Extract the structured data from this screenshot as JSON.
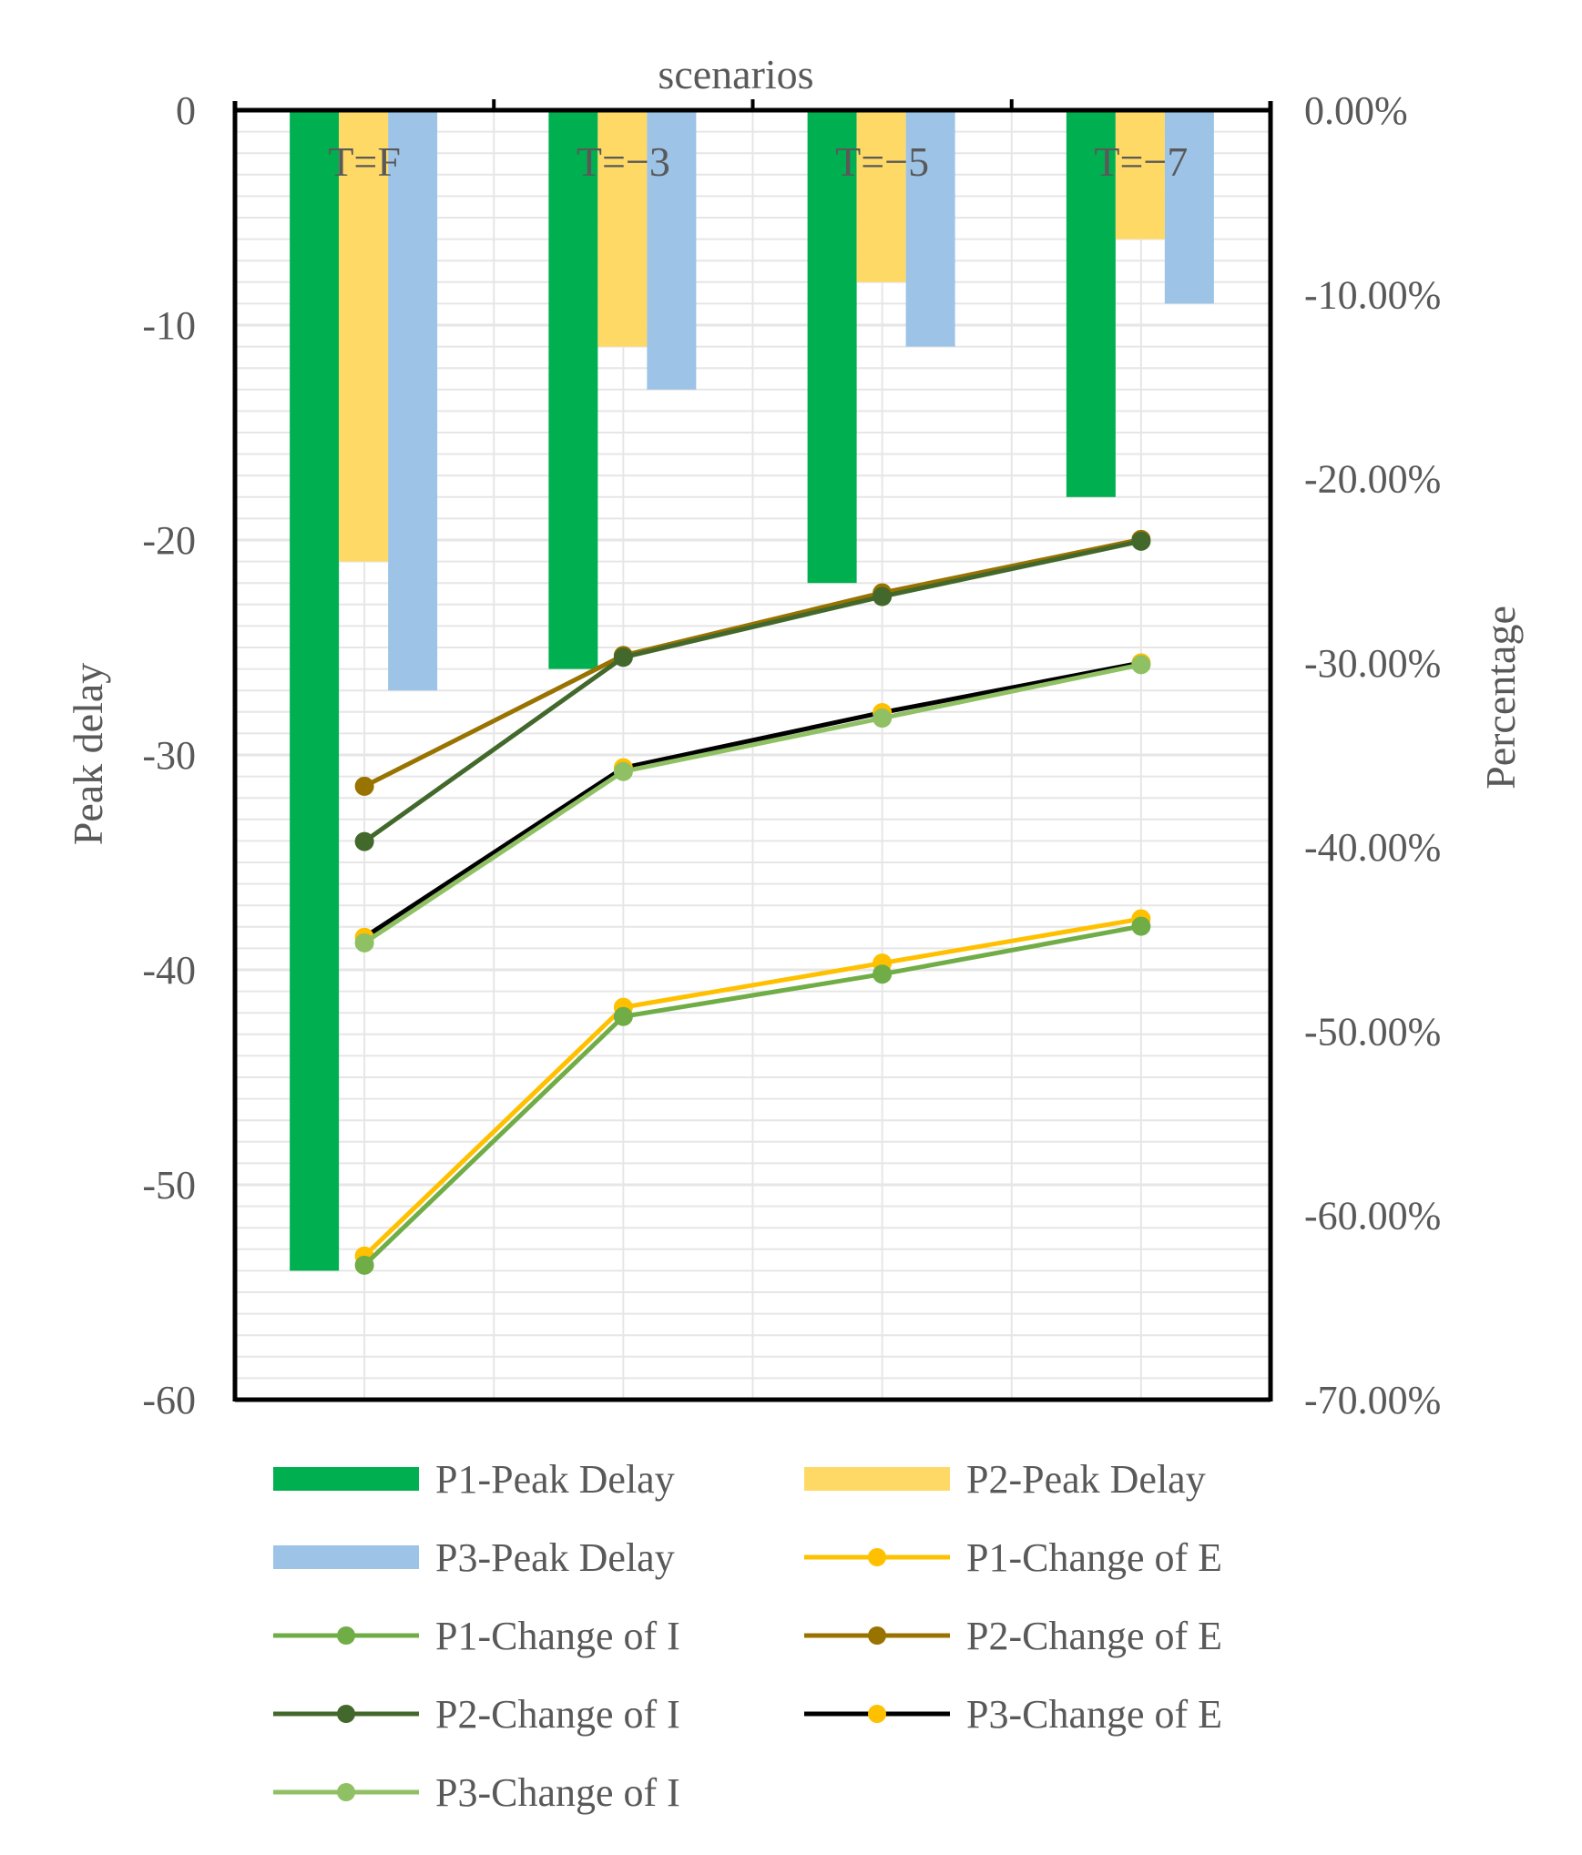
{
  "chart_data": {
    "type": "bar+line",
    "title": "",
    "xlabel": "scenarios",
    "ylabel": "Peak delay",
    "y2label": "Percentage",
    "categories": [
      "T=F",
      "T=−3",
      "T=−5",
      "T=−7"
    ],
    "ylim": [
      -60,
      0
    ],
    "y2lim": [
      -0.7,
      0
    ],
    "yticks": [
      "0",
      "-10",
      "-20",
      "-30",
      "-40",
      "-50",
      "-60"
    ],
    "y2ticks": [
      "0.00%",
      "-10.00%",
      "-20.00%",
      "-30.00%",
      "-40.00%",
      "-50.00%",
      "-60.00%",
      "-70.00%"
    ],
    "bar_series": [
      {
        "name": "P1-Peak Delay",
        "color": "#00b050",
        "values": [
          -54,
          -26,
          -22,
          -18
        ]
      },
      {
        "name": "P2-Peak Delay",
        "color": "#ffd966",
        "values": [
          -21,
          -11,
          -8,
          -6
        ]
      },
      {
        "name": "P3-Peak Delay",
        "color": "#9dc3e6",
        "values": [
          -27,
          -13,
          -11,
          -9
        ]
      }
    ],
    "line_series": [
      {
        "name": "P1-Change of E",
        "color": "#ffc000",
        "marker": "#ffc000",
        "values": [
          -0.622,
          -0.487,
          -0.463,
          -0.439
        ]
      },
      {
        "name": "P2-Change of E",
        "color": "#997300",
        "marker": "#997300",
        "values": [
          -0.367,
          -0.296,
          -0.262,
          -0.233
        ]
      },
      {
        "name": "P3-Change of E",
        "color": "#000000",
        "marker": "#ffc000",
        "values": [
          -0.449,
          -0.357,
          -0.327,
          -0.3
        ]
      },
      {
        "name": "P1-Change of I",
        "color": "#70ad47",
        "marker": "#70ad47",
        "values": [
          -0.627,
          -0.492,
          -0.469,
          -0.443
        ]
      },
      {
        "name": "P2-Change of I",
        "color": "#43682b",
        "marker": "#43682b",
        "values": [
          -0.397,
          -0.297,
          -0.264,
          -0.234
        ]
      },
      {
        "name": "P3-Change of I",
        "color": "#8fc063",
        "marker": "#8fc063",
        "values": [
          -0.452,
          -0.359,
          -0.33,
          -0.301
        ]
      }
    ],
    "legend": [
      "P1-Peak Delay",
      "P2-Peak Delay",
      "P3-Peak Delay",
      "P1-Change of E",
      "P1-Change of I",
      "P2-Change of E",
      "P2-Change of I",
      "P3-Change of E",
      "P3-Change of I"
    ],
    "legend_position": "bottom"
  }
}
